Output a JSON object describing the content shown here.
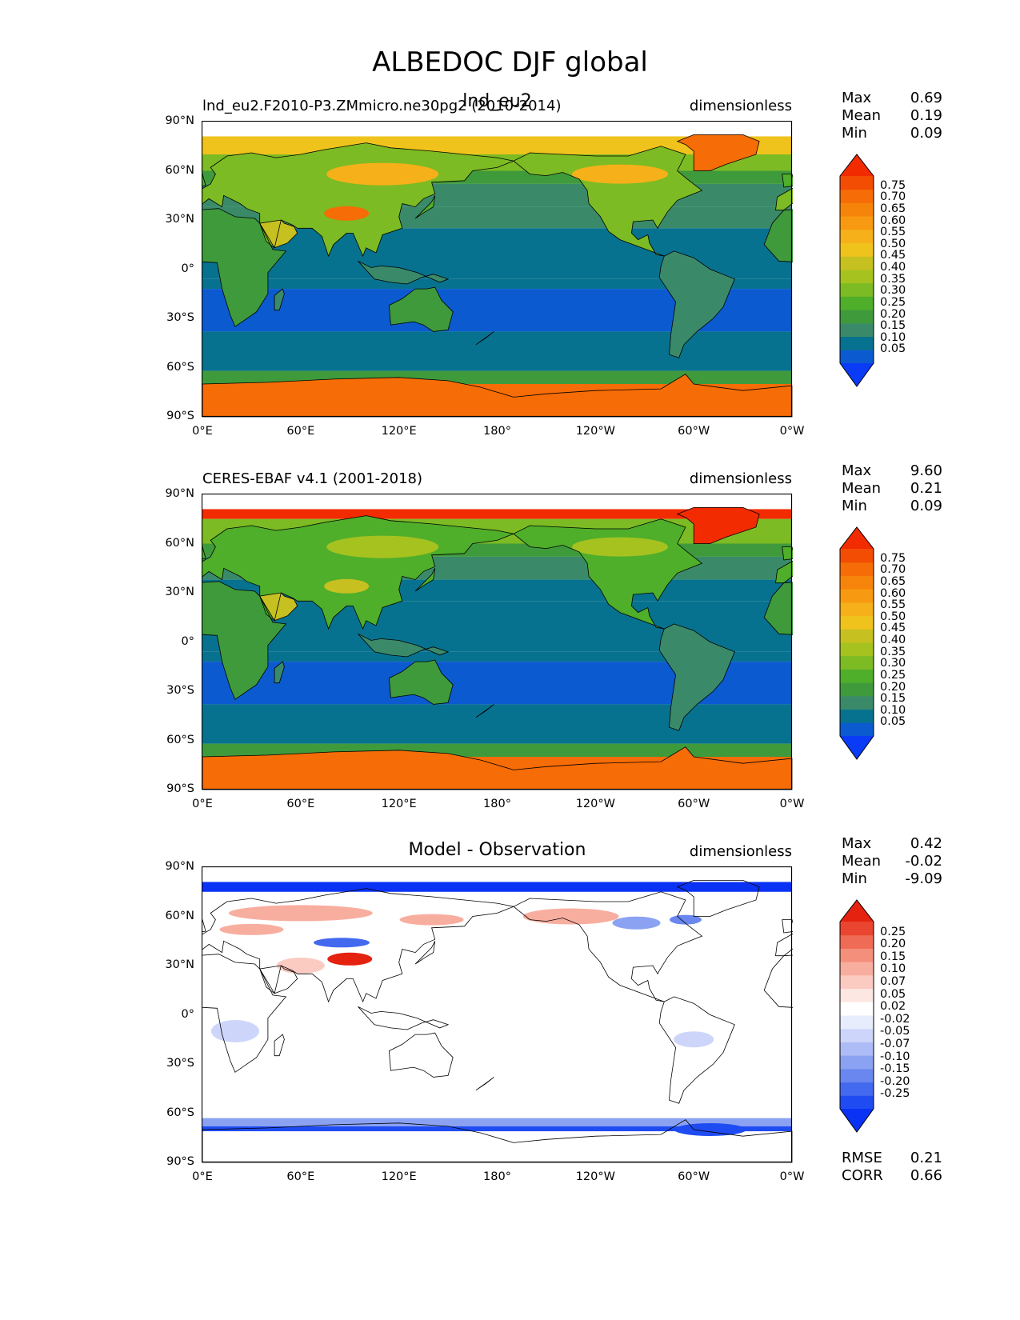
{
  "figure": {
    "title": "ALBEDOC DJF global"
  },
  "colors": {
    "absolute_levels": [
      "#0a3cf7",
      "#0b5ad0",
      "#07728f",
      "#3a8a6a",
      "#3f9a3c",
      "#4fae2a",
      "#7cbb23",
      "#a6c21f",
      "#c6c021",
      "#f0c31c",
      "#f6b01a",
      "#f79a12",
      "#f7840a",
      "#f66c06",
      "#f24d03",
      "#f22b00"
    ],
    "difference_levels": [
      "#0a32f4",
      "#1f4cf2",
      "#4369ee",
      "#6a87ef",
      "#8ba2f2",
      "#adbcf6",
      "#cdd6fa",
      "#e8edfd",
      "#ffffff",
      "#fde7e3",
      "#fbcbc2",
      "#f8ae9f",
      "#f48f7b",
      "#ef6b55",
      "#ea4530",
      "#e52210"
    ]
  },
  "panels": [
    {
      "id": "model",
      "header_left": "lnd_eu2.F2010-P3.ZMmicro.ne30pg2 (2010-2014)",
      "header_center": "lnd_eu2",
      "units": "dimensionless",
      "stats": [
        {
          "label": "Max",
          "value": "0.69"
        },
        {
          "label": "Mean",
          "value": "0.19"
        },
        {
          "label": "Min",
          "value": "0.09"
        }
      ],
      "colorbar_labels": [
        "0.75",
        "0.70",
        "0.65",
        "0.60",
        "0.55",
        "0.50",
        "0.45",
        "0.40",
        "0.35",
        "0.30",
        "0.25",
        "0.20",
        "0.15",
        "0.10",
        "0.05"
      ]
    },
    {
      "id": "observation",
      "header_left": "CERES-EBAF v4.1 (2001-2018)",
      "header_center": "",
      "units": "dimensionless",
      "stats": [
        {
          "label": "Max",
          "value": "9.60"
        },
        {
          "label": "Mean",
          "value": "0.21"
        },
        {
          "label": "Min",
          "value": "0.09"
        }
      ],
      "colorbar_labels": [
        "0.75",
        "0.70",
        "0.65",
        "0.60",
        "0.55",
        "0.50",
        "0.45",
        "0.40",
        "0.35",
        "0.30",
        "0.25",
        "0.20",
        "0.15",
        "0.10",
        "0.05"
      ]
    },
    {
      "id": "difference",
      "header_left": "",
      "header_center": "Model - Observation",
      "units": "dimensionless",
      "stats": [
        {
          "label": "Max",
          "value": "0.42"
        },
        {
          "label": "Mean",
          "value": "-0.02"
        },
        {
          "label": "Min",
          "value": "-9.09"
        }
      ],
      "colorbar_labels": [
        "0.25",
        "0.20",
        "0.15",
        "0.10",
        "0.07",
        "0.05",
        "0.02",
        "-0.02",
        "-0.05",
        "-0.07",
        "-0.10",
        "-0.15",
        "-0.20",
        "-0.25"
      ],
      "extra_stats": [
        {
          "label": "RMSE",
          "value": "0.21"
        },
        {
          "label": "CORR",
          "value": "0.66"
        }
      ]
    }
  ],
  "axes": {
    "lat_ticks": [
      "90°N",
      "60°N",
      "30°N",
      "0°",
      "30°S",
      "60°S",
      "90°S"
    ],
    "lon_ticks": [
      "0°E",
      "60°E",
      "120°E",
      "180°",
      "120°W",
      "60°W",
      "0°W"
    ]
  },
  "chart_data": [
    {
      "type": "heatmap",
      "title": "lnd_eu2.F2010-P3.ZMmicro.ne30pg2 (2010-2014)",
      "units": "dimensionless",
      "xlim": [
        0,
        360
      ],
      "ylim": [
        -90,
        90
      ],
      "levels": [
        0.05,
        0.1,
        0.15,
        0.2,
        0.25,
        0.3,
        0.35,
        0.4,
        0.45,
        0.5,
        0.55,
        0.6,
        0.65,
        0.7,
        0.75
      ],
      "max": 0.69,
      "mean": 0.19,
      "min": 0.09
    },
    {
      "type": "heatmap",
      "title": "CERES-EBAF v4.1 (2001-2018)",
      "units": "dimensionless",
      "xlim": [
        0,
        360
      ],
      "ylim": [
        -90,
        90
      ],
      "levels": [
        0.05,
        0.1,
        0.15,
        0.2,
        0.25,
        0.3,
        0.35,
        0.4,
        0.45,
        0.5,
        0.55,
        0.6,
        0.65,
        0.7,
        0.75
      ],
      "max": 9.6,
      "mean": 0.21,
      "min": 0.09
    },
    {
      "type": "heatmap",
      "title": "Model - Observation",
      "units": "dimensionless",
      "xlim": [
        0,
        360
      ],
      "ylim": [
        -90,
        90
      ],
      "levels": [
        -0.25,
        -0.2,
        -0.15,
        -0.1,
        -0.07,
        -0.05,
        -0.02,
        0.02,
        0.05,
        0.07,
        0.1,
        0.15,
        0.2,
        0.25
      ],
      "max": 0.42,
      "mean": -0.02,
      "min": -9.09,
      "rmse": 0.21,
      "corr": 0.66
    }
  ]
}
